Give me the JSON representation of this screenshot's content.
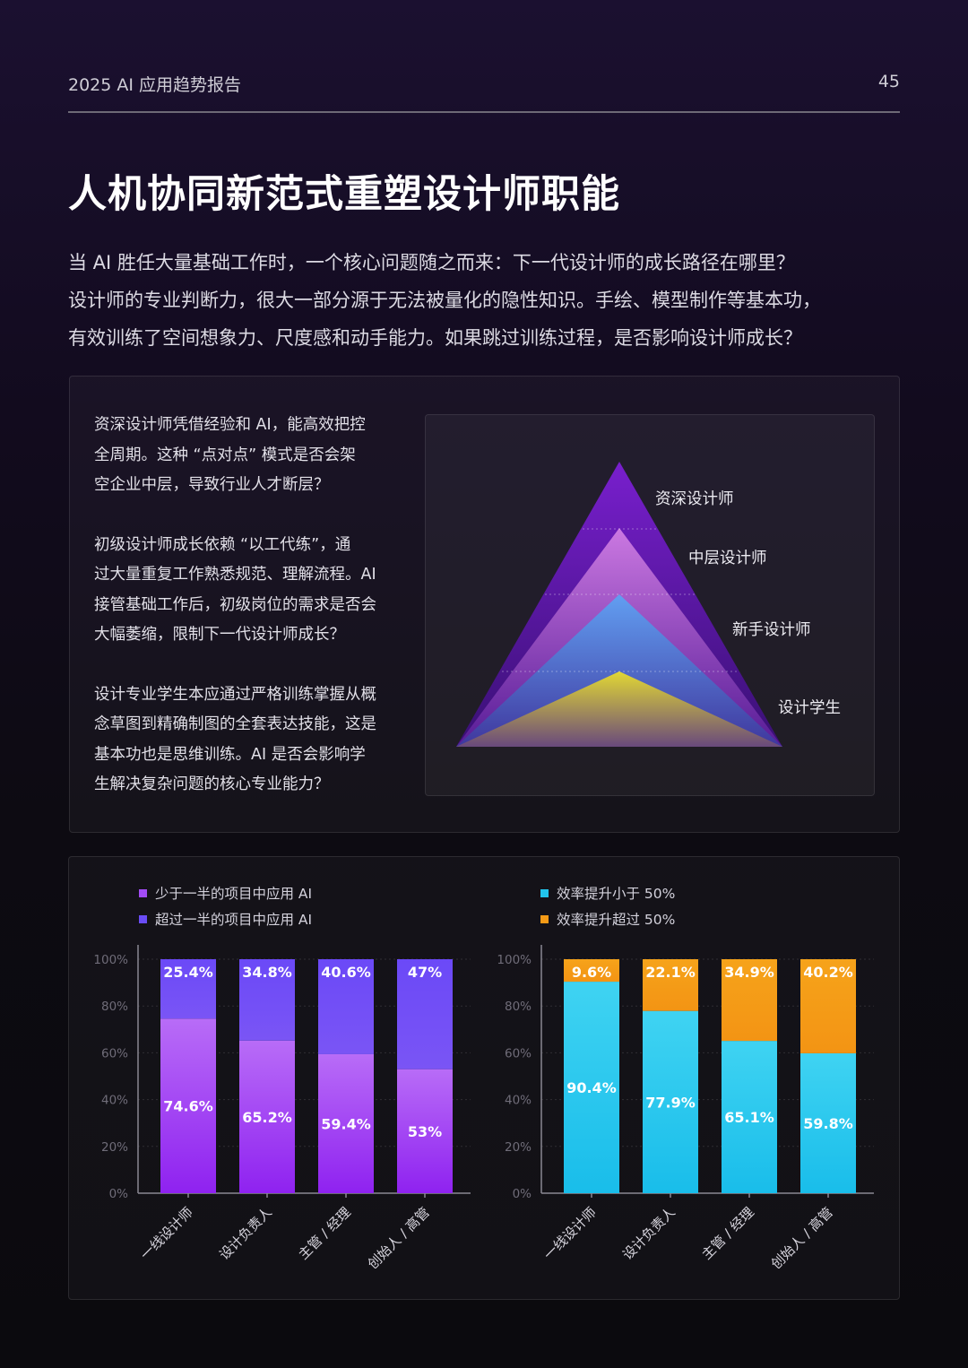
{
  "header": {
    "doc_title": "2025 AI 应用趋势报告",
    "page_number": "45"
  },
  "title": "人机协同新范式重塑设计师职能",
  "intro": [
    "当 AI 胜任大量基础工作时，一个核心问题随之而来：下一代设计师的成长路径在哪里？",
    "设计师的专业判断力，很大一部分源于无法被量化的隐性知识。手绘、模型制作等基本功，",
    "有效训练了空间想象力、尺度感和动手能力。如果跳过训练过程，是否影响设计师成长？"
  ],
  "box": {
    "paragraphs": [
      [
        "资深设计师凭借经验和 AI，能高效把控",
        "全周期。这种 “点对点” 模式是否会架",
        "空企业中层，导致行业人才断层？"
      ],
      [
        "初级设计师成长依赖 “以工代练”，通",
        "过大量重复工作熟悉规范、理解流程。AI",
        "接管基础工作后，初级岗位的需求是否会",
        "大幅萎缩，限制下一代设计师成长？"
      ],
      [
        "设计专业学生本应通过严格训练掌握从概",
        "念草图到精确制图的全套表达技能，这是",
        "基本功也是思维训练。AI 是否会影响学",
        "生解决复杂问题的核心专业能力？"
      ]
    ],
    "pyramid": {
      "levels": [
        "资深设计师",
        "中层设计师",
        "新手设计师",
        "设计学生"
      ],
      "colors": [
        "#8a2be2",
        "#c86bd6",
        "#4a8ff0",
        "#e6dc2a"
      ]
    }
  },
  "chart_data": [
    {
      "type": "bar",
      "stacked": true,
      "categories": [
        "一线设计师",
        "设计负责人",
        "主管 / 经理",
        "创始人 / 高管"
      ],
      "series": [
        {
          "name": "少于一半的项目中应用 AI",
          "values": [
            74.6,
            65.2,
            59.4,
            53
          ],
          "labels": [
            "74.6%",
            "65.2%",
            "59.4%",
            "53%"
          ],
          "color": "#a24bf5"
        },
        {
          "name": "超过一半的项目中应用 AI",
          "values": [
            25.4,
            34.8,
            40.6,
            47
          ],
          "labels": [
            "25.4%",
            "34.8%",
            "40.6%",
            "47%"
          ],
          "color": "#6a4cf6"
        }
      ],
      "yticks": [
        "0%",
        "20%",
        "40%",
        "60%",
        "80%",
        "100%"
      ],
      "ylim": [
        0,
        100
      ],
      "legend_position": "top-left"
    },
    {
      "type": "bar",
      "stacked": true,
      "categories": [
        "一线设计师",
        "设计负责人",
        "主管 / 经理",
        "创始人 / 高管"
      ],
      "series": [
        {
          "name": "效率提升小于 50%",
          "values": [
            90.4,
            77.9,
            65.1,
            59.8
          ],
          "labels": [
            "90.4%",
            "77.9%",
            "65.1%",
            "59.8%"
          ],
          "color": "#22c4ec"
        },
        {
          "name": "效率提升超过 50%",
          "values": [
            9.6,
            22.1,
            34.9,
            40.2
          ],
          "labels": [
            "9.6%",
            "22.1%",
            "34.9%",
            "40.2%"
          ],
          "color": "#f59a16"
        }
      ],
      "yticks": [
        "0%",
        "20%",
        "40%",
        "60%",
        "80%",
        "100%"
      ],
      "ylim": [
        0,
        100
      ],
      "legend_position": "top-right"
    }
  ]
}
